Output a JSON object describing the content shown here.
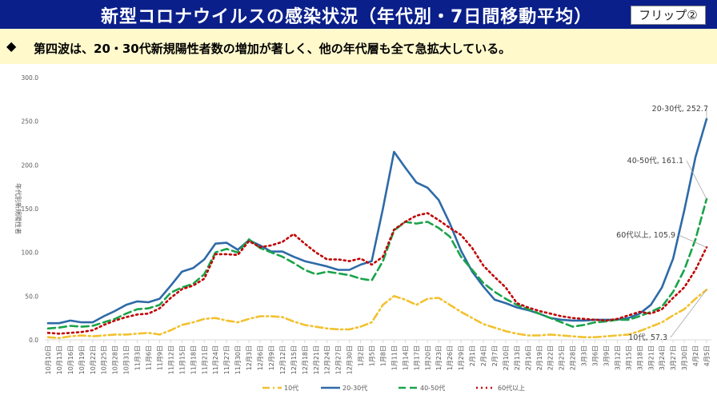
{
  "header": {
    "title": "新型コロナウイルスの感染状況（年代別・7日間移動平均）",
    "flip_label": "フリップ②"
  },
  "banner": {
    "bullet": "◆",
    "text": "第四波は、20・30代新規陽性者数の増加が著しく、他の年代層も全て急拡大している。"
  },
  "chart_data": {
    "type": "line",
    "title": "",
    "ylabel": "年代別新規陽性者",
    "xlabel": "",
    "ylim": [
      0,
      300
    ],
    "yticks": [
      "0.0",
      "50.0",
      "100.0",
      "150.0",
      "200.0",
      "250.0",
      "300.0"
    ],
    "grid": false,
    "legend_position": "bottom",
    "categories": [
      "10月10日",
      "10月13日",
      "10月16日",
      "10月19日",
      "10月22日",
      "10月25日",
      "10月28日",
      "10月31日",
      "11月3日",
      "11月6日",
      "11月9日",
      "11月12日",
      "11月15日",
      "11月18日",
      "11月21日",
      "11月24日",
      "11月27日",
      "11月30日",
      "12月3日",
      "12月6日",
      "12月9日",
      "12月12日",
      "12月15日",
      "12月18日",
      "12月21日",
      "12月24日",
      "12月27日",
      "12月30日",
      "1月2日",
      "1月5日",
      "1月8日",
      "1月11日",
      "1月14日",
      "1月17日",
      "1月20日",
      "1月23日",
      "1月26日",
      "1月29日",
      "2月1日",
      "2月4日",
      "2月7日",
      "2月10日",
      "2月13日",
      "2月16日",
      "2月19日",
      "2月22日",
      "2月25日",
      "2月28日",
      "3月3日",
      "3月6日",
      "3月9日",
      "3月12日",
      "3月15日",
      "3月18日",
      "3月21日",
      "3月24日",
      "3月27日",
      "3月30日",
      "4月2日",
      "4月5日"
    ],
    "series": [
      {
        "name": "10代",
        "color": "#f2c12e",
        "style": "dashdot",
        "end_label": "10代, 57.3",
        "values": [
          3,
          2,
          4,
          5,
          4,
          5,
          6,
          6,
          7,
          8,
          6,
          11,
          17,
          20,
          24,
          25,
          22,
          20,
          24,
          27,
          27,
          26,
          21,
          17,
          15,
          13,
          12,
          12,
          15,
          20,
          40,
          50,
          46,
          40,
          47,
          48,
          40,
          32,
          25,
          18,
          14,
          10,
          7,
          5,
          5,
          6,
          5,
          4,
          3,
          3,
          4,
          5,
          6,
          10,
          15,
          20,
          28,
          35,
          47,
          57.3
        ]
      },
      {
        "name": "20-30代",
        "color": "#2e6aa8",
        "style": "solid",
        "end_label": "20-30代, 252.7",
        "values": [
          19,
          19,
          22,
          20,
          20,
          27,
          33,
          40,
          44,
          43,
          47,
          62,
          78,
          82,
          92,
          110,
          111,
          103,
          114,
          108,
          101,
          101,
          95,
          90,
          87,
          84,
          80,
          80,
          86,
          90,
          150,
          215,
          197,
          180,
          174,
          160,
          133,
          102,
          78,
          61,
          46,
          42,
          37,
          34,
          30,
          25,
          23,
          22,
          22,
          23,
          23,
          23,
          25,
          30,
          40,
          60,
          93,
          148,
          209,
          252.7
        ]
      },
      {
        "name": "40-50代",
        "color": "#1aa34a",
        "style": "dashed",
        "end_label": "40-50代, 161.1",
        "values": [
          13,
          14,
          16,
          15,
          16,
          20,
          24,
          30,
          35,
          36,
          40,
          54,
          60,
          64,
          75,
          100,
          104,
          100,
          115,
          105,
          100,
          95,
          88,
          80,
          75,
          78,
          76,
          74,
          70,
          68,
          90,
          125,
          135,
          133,
          135,
          128,
          118,
          95,
          80,
          65,
          55,
          47,
          40,
          35,
          30,
          25,
          20,
          15,
          17,
          20,
          21,
          23,
          23,
          27,
          32,
          38,
          55,
          80,
          115,
          161.1
        ]
      },
      {
        "name": "60代以上",
        "color": "#c00000",
        "style": "dotted",
        "end_label": "60代以上, 105.9",
        "values": [
          8,
          7,
          8,
          9,
          11,
          17,
          22,
          26,
          29,
          30,
          36,
          48,
          58,
          62,
          70,
          98,
          98,
          97,
          113,
          106,
          108,
          112,
          121,
          110,
          100,
          92,
          92,
          90,
          93,
          86,
          95,
          126,
          135,
          142,
          145,
          137,
          128,
          120,
          105,
          85,
          72,
          60,
          42,
          37,
          33,
          30,
          27,
          25,
          24,
          23,
          22,
          24,
          28,
          32,
          30,
          35,
          48,
          60,
          80,
          105.9
        ]
      }
    ]
  }
}
